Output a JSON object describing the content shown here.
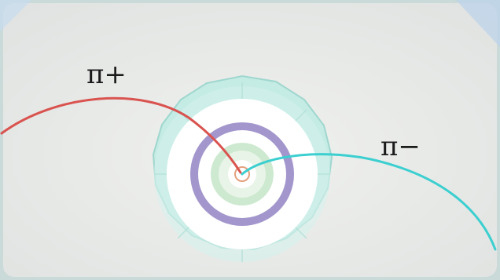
{
  "labels": {
    "pi_plus": "π+",
    "pi_minus": "π−"
  },
  "colors": {
    "background": "#e6e8e6",
    "track_pi_plus": "#d9534f",
    "track_pi_minus": "#3ccfd0",
    "outer_ring": "#b9e2dc",
    "inner_ring": "#9e8fc6",
    "core_ring": "#cfe8d0"
  }
}
